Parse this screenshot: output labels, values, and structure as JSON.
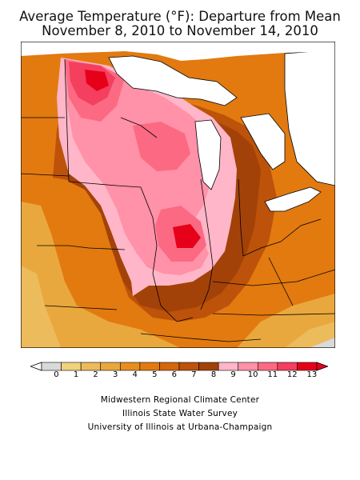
{
  "title": {
    "line1": "Average Temperature (°F): Departure from Mean",
    "line2": "November 8, 2010 to November 14, 2010"
  },
  "legend": {
    "labels": [
      "0",
      "1",
      "2",
      "3",
      "4",
      "5",
      "6",
      "7",
      "8",
      "9",
      "10",
      "11",
      "12",
      "13"
    ],
    "colors": [
      "#d9d9d9",
      "#f0d27d",
      "#ecbb5c",
      "#e9a83d",
      "#e68f1f",
      "#e27a10",
      "#d5660c",
      "#bd520a",
      "#a34208",
      "#ffb6c8",
      "#ff91a8",
      "#fb6a82",
      "#f43f5e",
      "#e6001a"
    ]
  },
  "map": {
    "region": "Midwest United States",
    "description_colors": {
      "land_default": "#e68f1f",
      "background": "#ffffff",
      "borders": "#000000"
    }
  },
  "credits": {
    "line1": "Midwestern Regional Climate Center",
    "line2": "Illinois State Water Survey",
    "line3": "University of Illinois at Urbana-Champaign"
  }
}
